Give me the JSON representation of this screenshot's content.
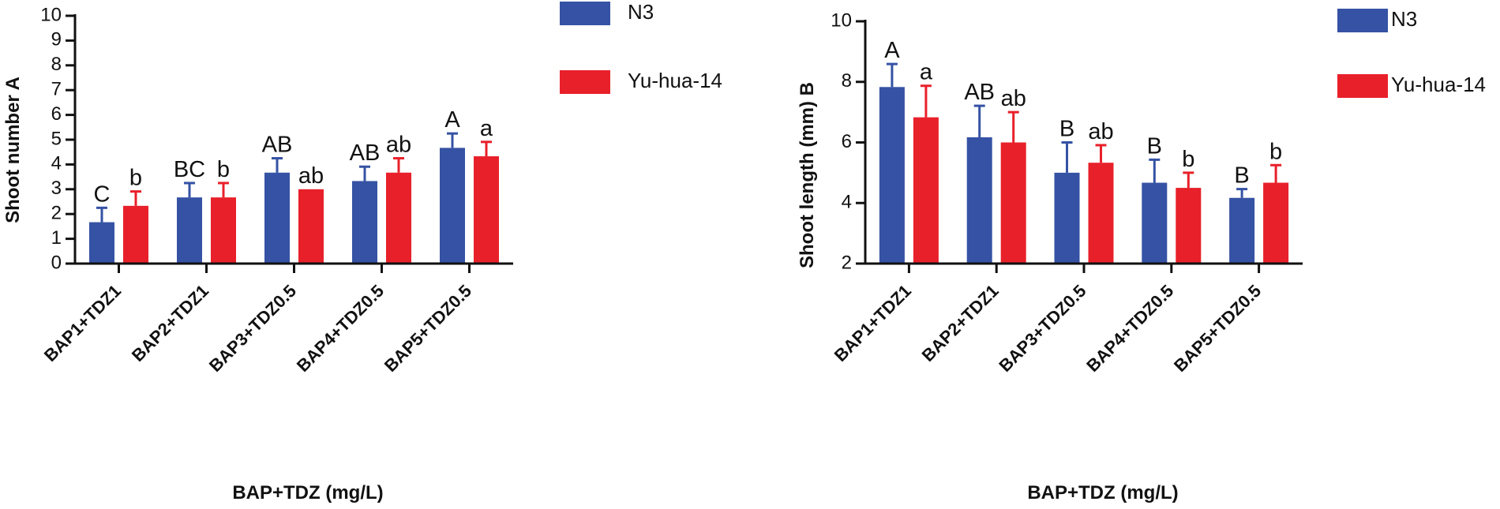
{
  "colors": {
    "N3": "#3552a4",
    "Yu-hua-14": "#e8202a",
    "axis": "#111111"
  },
  "chart_data": [
    {
      "type": "bar",
      "panel": "A",
      "title": "",
      "ylabel": "Shoot number A",
      "xlabel": "BAP+TDZ (mg/L)",
      "ylim": [
        0,
        10
      ],
      "yticks": [
        0,
        1,
        2,
        3,
        4,
        5,
        6,
        7,
        8,
        9,
        10
      ],
      "categories": [
        "BAP1+TDZ1",
        "BAP2+TDZ1",
        "BAP3+TDZ0.5",
        "BAP4+TDZ0.5",
        "BAP5+TDZ0.5"
      ],
      "legend": {
        "position": "top-right"
      },
      "series": [
        {
          "name": "N3",
          "color": "#3552a4",
          "values": [
            1.67,
            2.67,
            3.67,
            3.33,
            4.67
          ],
          "errors": [
            0.58,
            0.58,
            0.58,
            0.58,
            0.58
          ],
          "letters": [
            "C",
            "BC",
            "AB",
            "AB",
            "A"
          ]
        },
        {
          "name": "Yu-hua-14",
          "color": "#e8202a",
          "values": [
            2.33,
            2.67,
            3.0,
            3.67,
            4.33
          ],
          "errors": [
            0.58,
            0.58,
            0.0,
            0.58,
            0.58
          ],
          "letters": [
            "b",
            "b",
            "ab",
            "ab",
            "a"
          ]
        }
      ]
    },
    {
      "type": "bar",
      "panel": "B",
      "title": "",
      "ylabel": "Shoot length (mm) B",
      "xlabel": "BAP+TDZ (mg/L)",
      "ylim": [
        2,
        10
      ],
      "yticks": [
        2,
        4,
        6,
        8,
        10
      ],
      "categories": [
        "BAP1+TDZ1",
        "BAP2+TDZ1",
        "BAP3+TDZ0.5",
        "BAP4+TDZ0.5",
        "BAP5+TDZ0.5"
      ],
      "legend": {
        "position": "top-right"
      },
      "series": [
        {
          "name": "N3",
          "color": "#3552a4",
          "values": [
            7.83,
            6.17,
            5.0,
            4.67,
            4.17
          ],
          "errors": [
            0.76,
            1.04,
            1.0,
            0.76,
            0.29
          ],
          "letters": [
            "A",
            "AB",
            "B",
            "B",
            "B"
          ]
        },
        {
          "name": "Yu-hua-14",
          "color": "#e8202a",
          "values": [
            6.83,
            6.0,
            5.33,
            4.5,
            4.67
          ],
          "errors": [
            1.04,
            1.0,
            0.58,
            0.5,
            0.58
          ],
          "letters": [
            "a",
            "ab",
            "ab",
            "b",
            "b"
          ]
        }
      ]
    }
  ]
}
